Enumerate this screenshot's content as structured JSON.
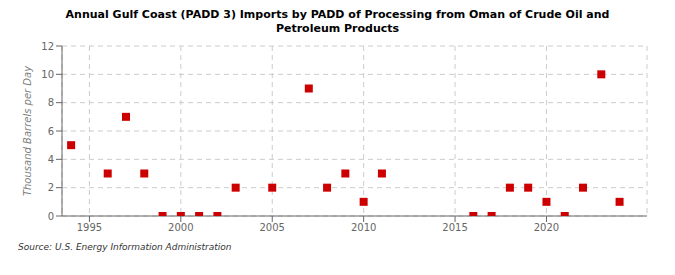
{
  "chart_data": {
    "type": "scatter",
    "title": "Annual Gulf Coast (PADD 3) Imports by PADD of Processing from Oman of Crude Oil and\nPetroleum Products",
    "ylabel": "Thousand Barrels per Day",
    "annotation": "Source: U.S. Energy Information Administration",
    "x": [
      1994,
      1996,
      1997,
      1998,
      1999,
      2000,
      2001,
      2002,
      2003,
      2005,
      2007,
      2008,
      2009,
      2010,
      2011,
      2016,
      2017,
      2018,
      2019,
      2020,
      2021,
      2022,
      2023,
      2024
    ],
    "values": [
      5,
      3,
      7,
      3,
      0,
      0,
      0,
      0,
      2,
      2,
      9,
      2,
      3,
      1,
      3,
      0,
      0,
      2,
      2,
      1,
      0,
      2,
      10,
      1
    ],
    "color": "#cc0000",
    "marker": "square",
    "xlim": [
      1993.5,
      2025.5
    ],
    "ylim": [
      0,
      12
    ],
    "xticks": [
      1995,
      2000,
      2005,
      2010,
      2015,
      2020
    ],
    "yticks": [
      0,
      2,
      4,
      6,
      8,
      10,
      12
    ],
    "grid": true
  }
}
